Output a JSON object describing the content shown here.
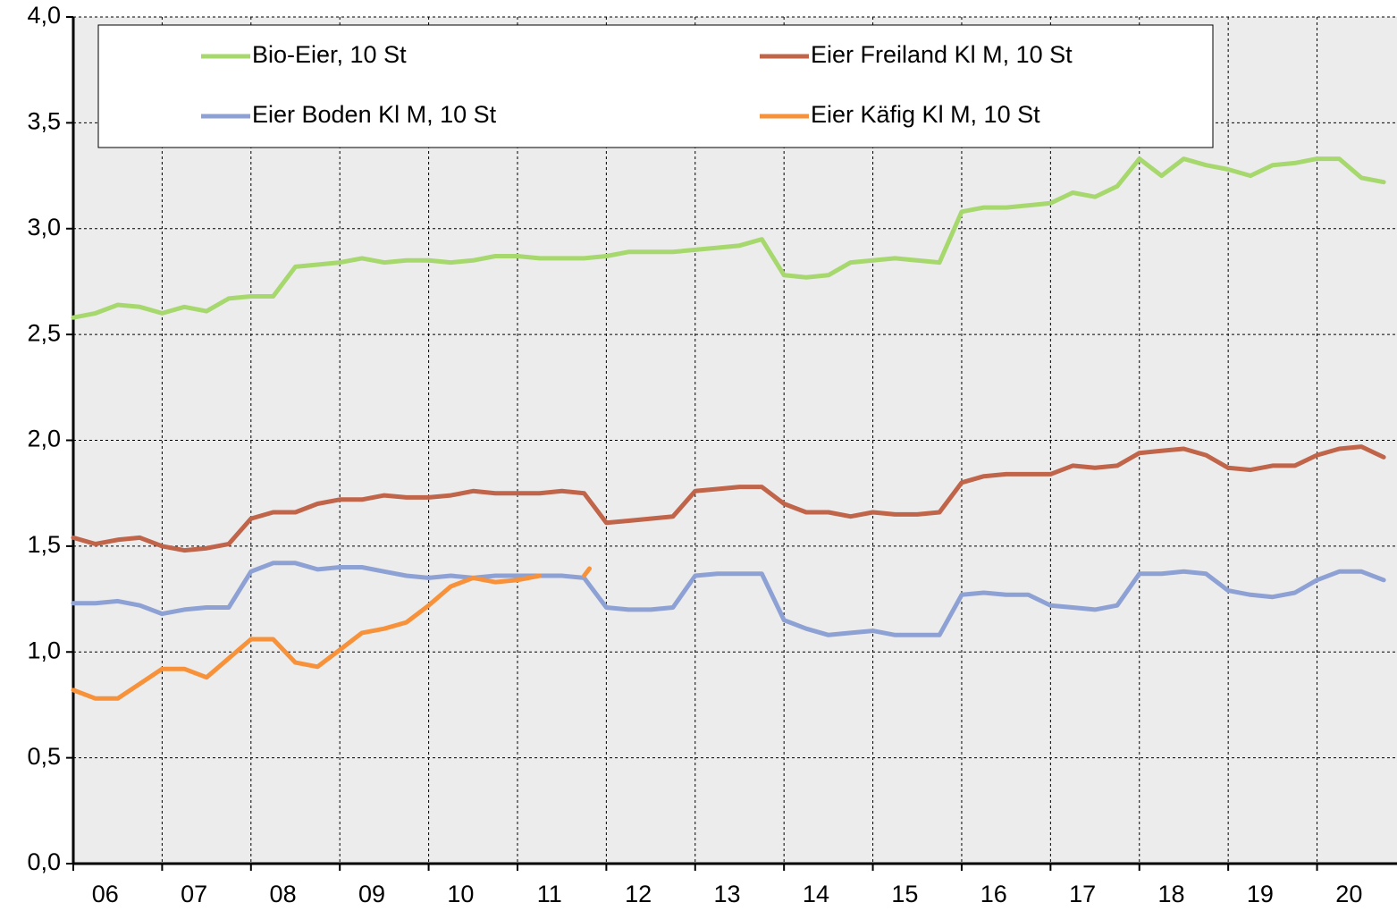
{
  "chart_data": {
    "type": "line",
    "x": [
      6,
      6.25,
      6.5,
      6.75,
      7,
      7.25,
      7.5,
      7.75,
      8,
      8.25,
      8.5,
      8.75,
      9,
      9.25,
      9.5,
      9.75,
      10,
      10.25,
      10.5,
      10.75,
      11,
      11.25,
      11.5,
      11.75,
      12,
      12.25,
      12.5,
      12.75,
      13,
      13.25,
      13.5,
      13.75,
      14,
      14.25,
      14.5,
      14.75,
      15,
      15.25,
      15.5,
      15.75,
      16,
      16.25,
      16.5,
      16.75,
      17,
      17.25,
      17.5,
      17.75,
      18,
      18.25,
      18.5,
      18.75,
      19,
      19.25,
      19.5,
      19.75,
      20,
      20.25,
      20.5,
      20.75
    ],
    "series": [
      {
        "name": "Bio-Eier, 10 St",
        "color": "#a6d86e",
        "values": [
          2.58,
          2.6,
          2.64,
          2.63,
          2.6,
          2.63,
          2.61,
          2.67,
          2.68,
          2.68,
          2.82,
          2.83,
          2.84,
          2.86,
          2.84,
          2.85,
          2.85,
          2.84,
          2.85,
          2.87,
          2.87,
          2.86,
          2.86,
          2.86,
          2.87,
          2.89,
          2.89,
          2.89,
          2.9,
          2.91,
          2.92,
          2.95,
          2.78,
          2.77,
          2.78,
          2.84,
          2.85,
          2.86,
          2.85,
          2.84,
          3.08,
          3.1,
          3.1,
          3.11,
          3.12,
          3.17,
          3.15,
          3.2,
          3.33,
          3.25,
          3.33,
          3.3,
          3.28,
          3.25,
          3.3,
          3.31,
          3.33,
          3.33,
          3.24,
          3.22
        ]
      },
      {
        "name": "Eier Freiland Kl M, 10 St",
        "color": "#c0644a",
        "values": [
          1.54,
          1.51,
          1.53,
          1.54,
          1.5,
          1.48,
          1.49,
          1.51,
          1.63,
          1.66,
          1.66,
          1.7,
          1.72,
          1.72,
          1.74,
          1.73,
          1.73,
          1.74,
          1.76,
          1.75,
          1.75,
          1.75,
          1.76,
          1.75,
          1.61,
          1.62,
          1.63,
          1.64,
          1.76,
          1.77,
          1.78,
          1.78,
          1.7,
          1.66,
          1.66,
          1.64,
          1.66,
          1.65,
          1.65,
          1.66,
          1.8,
          1.83,
          1.84,
          1.84,
          1.84,
          1.88,
          1.87,
          1.88,
          1.94,
          1.95,
          1.96,
          1.93,
          1.87,
          1.86,
          1.88,
          1.88,
          1.93,
          1.96,
          1.97,
          1.92
        ]
      },
      {
        "name": "Eier Boden Kl M, 10 St",
        "color": "#8ea1d4",
        "values": [
          1.23,
          1.23,
          1.24,
          1.22,
          1.18,
          1.2,
          1.21,
          1.21,
          1.38,
          1.42,
          1.42,
          1.39,
          1.4,
          1.4,
          1.38,
          1.36,
          1.35,
          1.36,
          1.35,
          1.36,
          1.36,
          1.36,
          1.36,
          1.35,
          1.21,
          1.2,
          1.2,
          1.21,
          1.36,
          1.37,
          1.37,
          1.37,
          1.15,
          1.11,
          1.08,
          1.09,
          1.1,
          1.08,
          1.08,
          1.08,
          1.27,
          1.28,
          1.27,
          1.27,
          1.22,
          1.21,
          1.2,
          1.22,
          1.37,
          1.37,
          1.38,
          1.37,
          1.29,
          1.27,
          1.26,
          1.28,
          1.34,
          1.38,
          1.38,
          1.34
        ]
      },
      {
        "name": "Eier Käfig Kl M, 10 St",
        "color": "#f7923a",
        "values": [
          0.82,
          0.78,
          0.78,
          0.85,
          0.92,
          0.92,
          0.88,
          0.97,
          1.06,
          1.06,
          0.95,
          0.93,
          1.01,
          1.09,
          1.11,
          1.14,
          1.22,
          1.31,
          1.35,
          1.33,
          1.34,
          1.36,
          null,
          1.36,
          null,
          null,
          null,
          null,
          null,
          null,
          null,
          null,
          null,
          null,
          null,
          null,
          null,
          null,
          null,
          null,
          null,
          null,
          null,
          null,
          null,
          null,
          null,
          null,
          null,
          null,
          null,
          null,
          null,
          null,
          null,
          null,
          null,
          null,
          null,
          null
        ]
      }
    ],
    "xlim": [
      6,
      20.9
    ],
    "xticks": [
      {
        "value": 6,
        "label": "06"
      },
      {
        "value": 7,
        "label": "07"
      },
      {
        "value": 8,
        "label": "08"
      },
      {
        "value": 9,
        "label": "09"
      },
      {
        "value": 10,
        "label": "10"
      },
      {
        "value": 11,
        "label": "11"
      },
      {
        "value": 12,
        "label": "12"
      },
      {
        "value": 13,
        "label": "13"
      },
      {
        "value": 14,
        "label": "14"
      },
      {
        "value": 15,
        "label": "15"
      },
      {
        "value": 16,
        "label": "16"
      },
      {
        "value": 17,
        "label": "17"
      },
      {
        "value": 18,
        "label": "18"
      },
      {
        "value": 19,
        "label": "19"
      },
      {
        "value": 20,
        "label": "20"
      }
    ],
    "ylim": [
      0,
      4
    ],
    "yticks": [
      {
        "value": 0,
        "label": "0,0"
      },
      {
        "value": 0.5,
        "label": "0,5"
      },
      {
        "value": 1,
        "label": "1,0"
      },
      {
        "value": 1.5,
        "label": "1,5"
      },
      {
        "value": 2,
        "label": "2,0"
      },
      {
        "value": 2.5,
        "label": "2,5"
      },
      {
        "value": 3,
        "label": "3,0"
      },
      {
        "value": 3.5,
        "label": "3,5"
      },
      {
        "value": 4,
        "label": "4,0"
      }
    ],
    "grid": true,
    "legend": "top"
  }
}
